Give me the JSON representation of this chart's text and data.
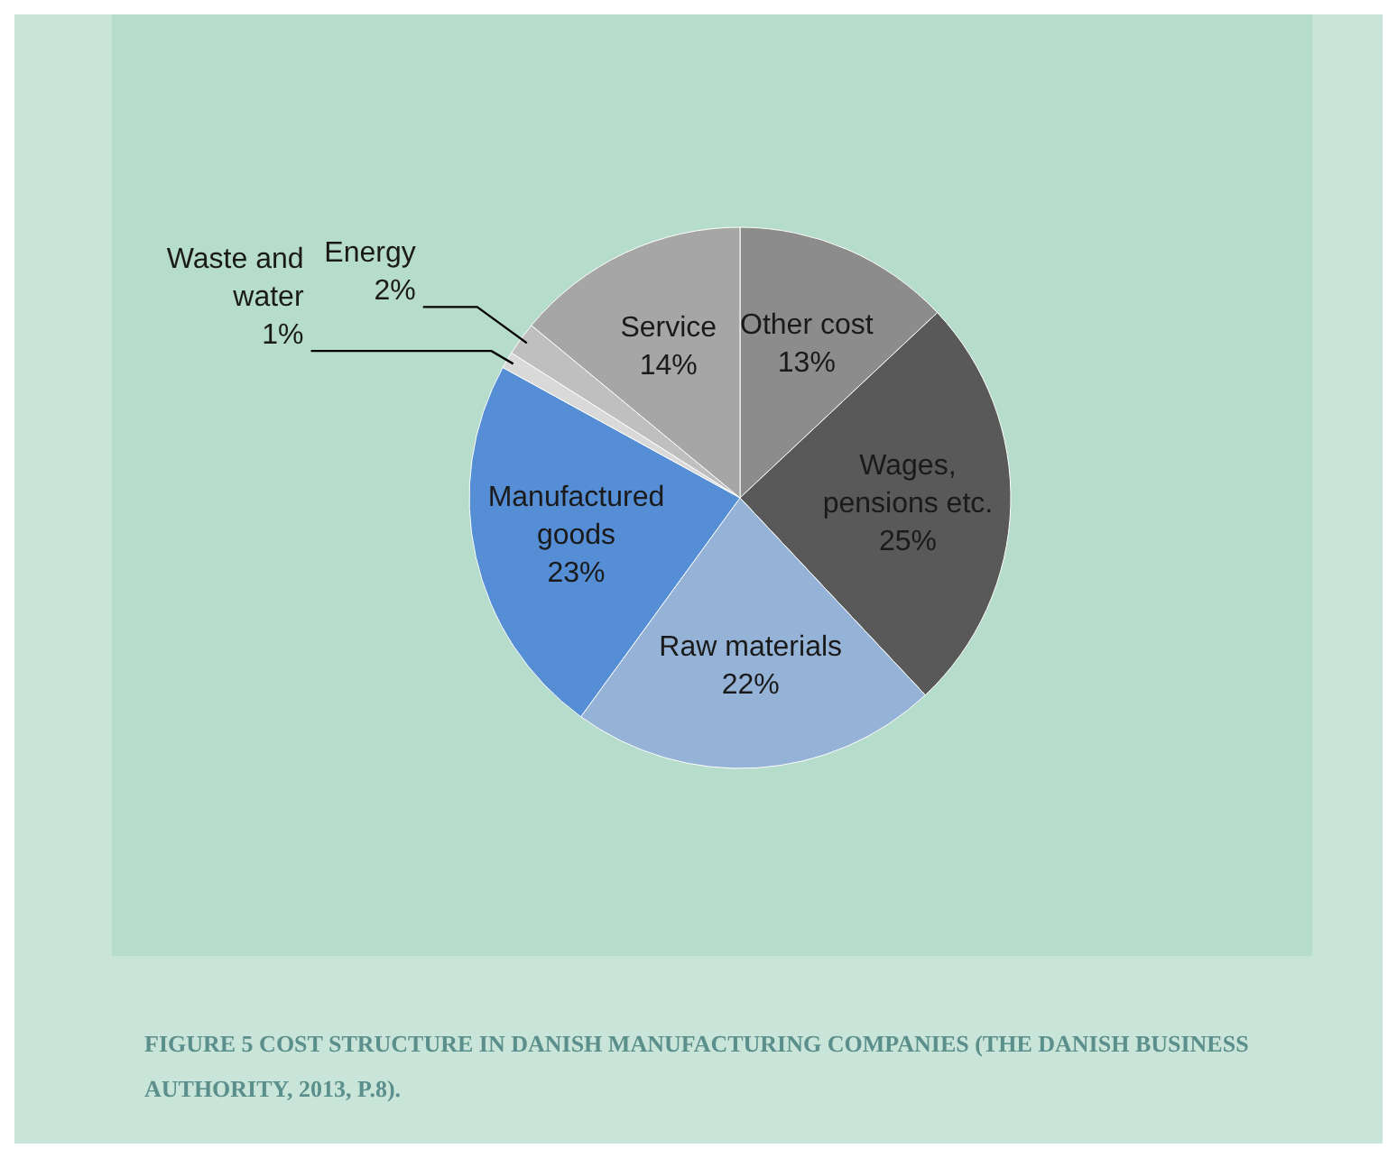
{
  "chart_data": {
    "type": "pie",
    "categories": [
      "Other cost",
      "Wages, pensions etc.",
      "Raw materials",
      "Manufactured goods",
      "Waste and water",
      "Energy",
      "Service"
    ],
    "values": [
      13,
      25,
      22,
      23,
      1,
      2,
      14
    ],
    "value_labels": [
      "13%",
      "25%",
      "22%",
      "23%",
      "1%",
      "2%",
      "14%"
    ],
    "colors": [
      "#8c8c8c",
      "#595959",
      "#95b3d7",
      "#558ed5",
      "#d9d9d9",
      "#bfbfbf",
      "#a6a6a6"
    ],
    "annotations": [
      "FIGURE 5 COST STRUCTURE IN DANISH MANUFACTURING COMPANIES (THE DANISH BUSINESS AUTHORITY, 2013, P.8)."
    ]
  }
}
